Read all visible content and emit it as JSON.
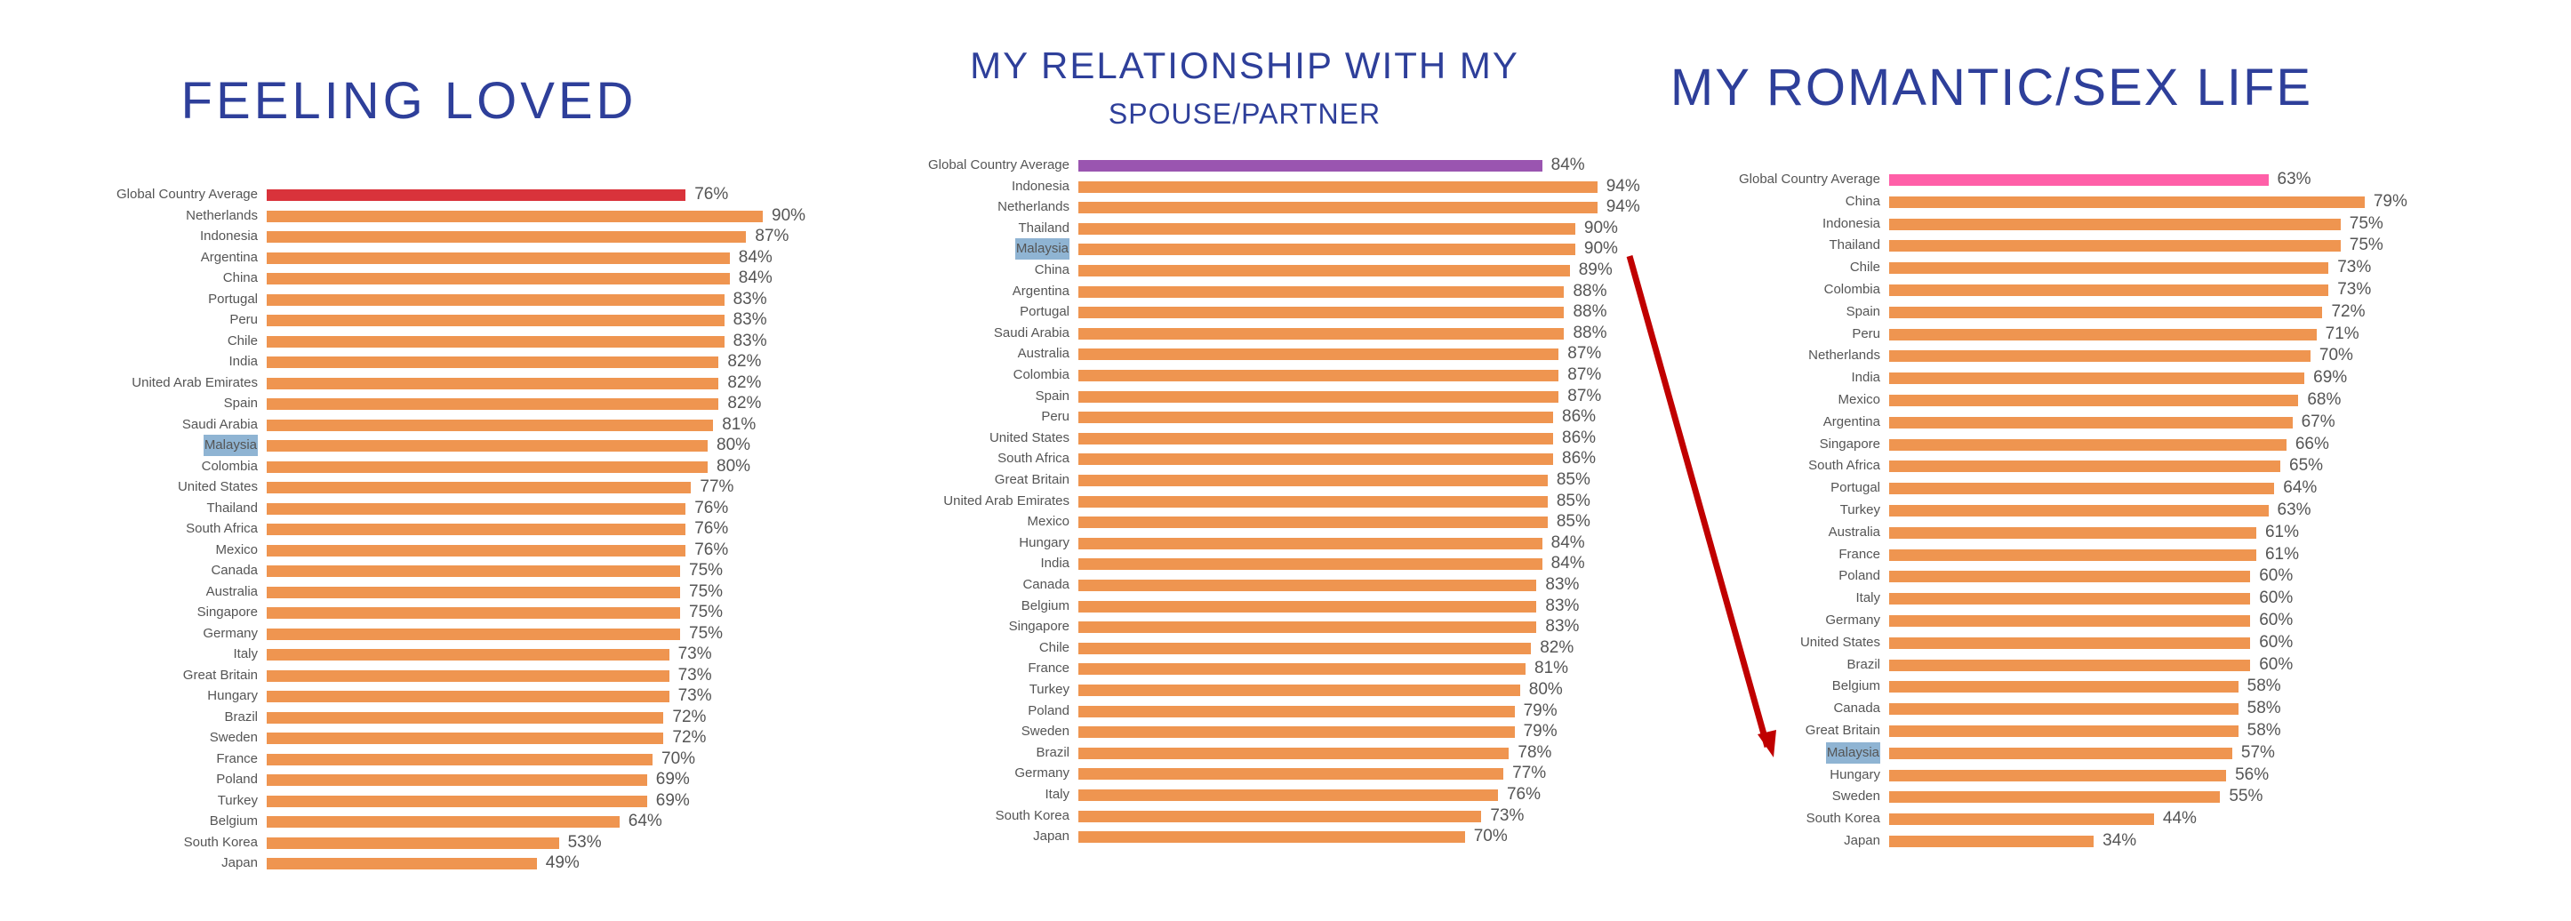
{
  "colors": {
    "bar": "#ef9550",
    "highlight_label": "#8fb4d3",
    "title": "#2e3f9a",
    "arrow": "#c00000"
  },
  "highlight_country": "Malaysia",
  "chart_data": [
    {
      "type": "bar",
      "title": "FEELING LOVED",
      "average_color": "#d9333b",
      "xlim": [
        0,
        100
      ],
      "categories": [
        "Global Country Average",
        "Netherlands",
        "Indonesia",
        "Argentina",
        "China",
        "Portugal",
        "Peru",
        "Chile",
        "India",
        "United Arab Emirates",
        "Spain",
        "Saudi Arabia",
        "Malaysia",
        "Colombia",
        "United States",
        "Thailand",
        "South Africa",
        "Mexico",
        "Canada",
        "Australia",
        "Singapore",
        "Germany",
        "Italy",
        "Great Britain",
        "Hungary",
        "Brazil",
        "Sweden",
        "France",
        "Poland",
        "Turkey",
        "Belgium",
        "South Korea",
        "Japan"
      ],
      "values": [
        76,
        90,
        87,
        84,
        84,
        83,
        83,
        83,
        82,
        82,
        82,
        81,
        80,
        80,
        77,
        76,
        76,
        76,
        75,
        75,
        75,
        75,
        73,
        73,
        73,
        72,
        72,
        70,
        69,
        69,
        64,
        53,
        49
      ]
    },
    {
      "type": "bar",
      "title": "MY RELATIONSHIP WITH MY",
      "subtitle": "SPOUSE/PARTNER",
      "average_color": "#9a55b0",
      "xlim": [
        0,
        100
      ],
      "categories": [
        "Global Country Average",
        "Indonesia",
        "Netherlands",
        "Thailand",
        "Malaysia",
        "China",
        "Argentina",
        "Portugal",
        "Saudi Arabia",
        "Australia",
        "Colombia",
        "Spain",
        "Peru",
        "United States",
        "South Africa",
        "Great Britain",
        "United Arab Emirates",
        "Mexico",
        "Hungary",
        "India",
        "Canada",
        "Belgium",
        "Singapore",
        "Chile",
        "France",
        "Turkey",
        "Poland",
        "Sweden",
        "Brazil",
        "Germany",
        "Italy",
        "South Korea",
        "Japan"
      ],
      "values": [
        84,
        94,
        94,
        90,
        90,
        89,
        88,
        88,
        88,
        87,
        87,
        87,
        86,
        86,
        86,
        85,
        85,
        85,
        84,
        84,
        83,
        83,
        83,
        82,
        81,
        80,
        79,
        79,
        78,
        77,
        76,
        73,
        70
      ]
    },
    {
      "type": "bar",
      "title": "MY ROMANTIC/SEX LIFE",
      "average_color": "#ff5fa8",
      "xlim": [
        0,
        100
      ],
      "categories": [
        "Global Country Average",
        "China",
        "Indonesia",
        "Thailand",
        "Chile",
        "Colombia",
        "Spain",
        "Peru",
        "Netherlands",
        "India",
        "Mexico",
        "Argentina",
        "Singapore",
        "South Africa",
        "Portugal",
        "Turkey",
        "Australia",
        "France",
        "Poland",
        "Italy",
        "Germany",
        "United States",
        "Brazil",
        "Belgium",
        "Canada",
        "Great Britain",
        "Malaysia",
        "Hungary",
        "Sweden",
        "South Korea",
        "Japan"
      ],
      "values": [
        63,
        79,
        75,
        75,
        73,
        73,
        72,
        71,
        70,
        69,
        68,
        67,
        66,
        65,
        64,
        63,
        61,
        61,
        60,
        60,
        60,
        60,
        60,
        58,
        58,
        58,
        57,
        56,
        55,
        44,
        34
      ]
    }
  ]
}
